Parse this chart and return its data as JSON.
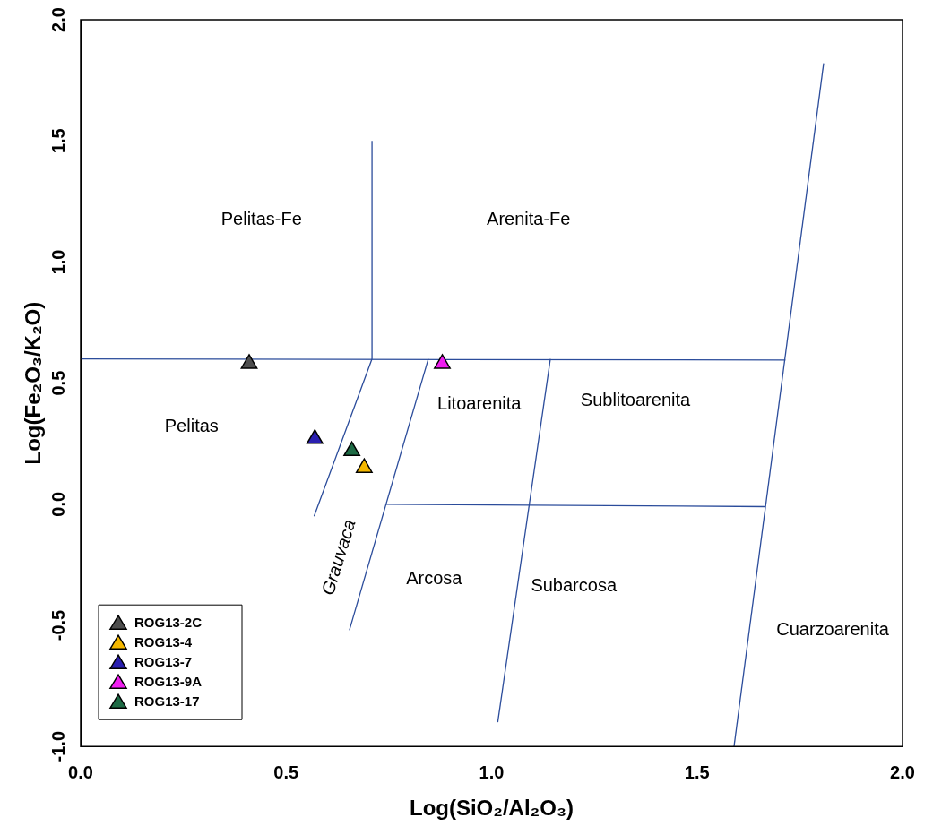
{
  "chart_data": {
    "type": "scatter",
    "xlabel": "Log(SiO₂/Al₂O₃)",
    "ylabel": "Log(Fe₂O₃/K₂O)",
    "xlim": [
      0,
      2
    ],
    "ylim": [
      -1,
      2
    ],
    "xticks": [
      {
        "value": 0,
        "label": "0.0"
      },
      {
        "value": 0.5,
        "label": "0.5"
      },
      {
        "value": 1,
        "label": "1.0"
      },
      {
        "value": 1.5,
        "label": "1.5"
      },
      {
        "value": 2,
        "label": "2.0"
      }
    ],
    "yticks": [
      {
        "value": -1,
        "label": "-1.0"
      },
      {
        "value": -0.5,
        "label": "-0.5"
      },
      {
        "value": 0,
        "label": "0.0"
      },
      {
        "value": 0.5,
        "label": "0.5"
      },
      {
        "value": 1,
        "label": "1.0"
      },
      {
        "value": 1.5,
        "label": "1.5"
      },
      {
        "value": 2,
        "label": "2.0"
      }
    ],
    "grid": false,
    "legend": "bottom left",
    "marker": "triangle",
    "series": [
      {
        "name": "ROG13-2C",
        "color": "#4d4d4d",
        "x": [
          0.41
        ],
        "values": [
          0.58
        ]
      },
      {
        "name": "ROG13-4",
        "color": "#f5b800",
        "x": [
          0.69
        ],
        "values": [
          0.15
        ]
      },
      {
        "name": "ROG13-7",
        "color": "#2a1fb0",
        "x": [
          0.57
        ],
        "values": [
          0.27
        ]
      },
      {
        "name": "ROG13-9A",
        "color": "#f01ef0",
        "x": [
          0.88
        ],
        "values": [
          0.58
        ]
      },
      {
        "name": "ROG13-17",
        "color": "#1e6b45",
        "x": [
          0.66
        ],
        "values": [
          0.22
        ]
      },
      {
        "type": "line",
        "marker": "none",
        "color": "#2b4c9b",
        "x": [
          0,
          1.715
        ],
        "values": [
          0.6,
          0.595
        ]
      },
      {
        "type": "line",
        "marker": "none",
        "color": "#2b4c9b",
        "x": [
          0.568,
          0.709,
          0.709
        ],
        "values": [
          -0.05,
          0.6,
          1.5
        ]
      },
      {
        "type": "line",
        "marker": "none",
        "color": "#2b4c9b",
        "x": [
          0.654,
          0.846
        ],
        "values": [
          -0.52,
          0.6
        ]
      },
      {
        "type": "line",
        "marker": "none",
        "color": "#2b4c9b",
        "x": [
          1.015,
          1.143
        ],
        "values": [
          -0.9,
          0.6
        ]
      },
      {
        "type": "line",
        "marker": "none",
        "color": "#2b4c9b",
        "x": [
          0.742,
          1.666
        ],
        "values": [
          0,
          -0.01
        ]
      },
      {
        "type": "line",
        "marker": "none",
        "color": "#2b4c9b",
        "x": [
          1.59,
          1.808
        ],
        "values": [
          -1,
          1.82
        ]
      }
    ],
    "annotations": [
      "Pelitas-Fe",
      "Arenita-Fe",
      "Pelitas",
      "Litoarenita",
      "Sublitoarenita",
      "Grauvaca",
      "Arcosa",
      "Subarcosa",
      "Cuarzoarenita"
    ]
  }
}
